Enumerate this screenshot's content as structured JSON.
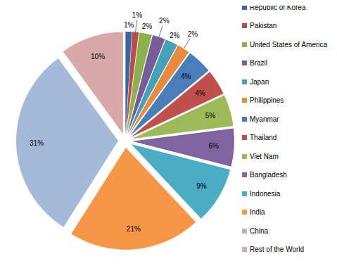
{
  "chart_data": {
    "type": "pie",
    "categories": [
      "Republic of Korea",
      "Pakistan",
      "United States of America",
      "Brazil",
      "Japan",
      "Philippines",
      "Myanmar",
      "Thailand",
      "Viet Nam",
      "Bangladesh",
      "Indonesia",
      "India",
      "China",
      "Rest of the World"
    ],
    "values": [
      1,
      1,
      2,
      2,
      2,
      2,
      4,
      4,
      5,
      6,
      9,
      21,
      31,
      10
    ],
    "value_labels": [
      "1%",
      "1%",
      "2%",
      "2%",
      "2%",
      "2%",
      "4%",
      "4%",
      "5%",
      "6%",
      "9%",
      "21%",
      "31%",
      "10%"
    ],
    "colors": [
      "#3a67a3",
      "#b84c49",
      "#8fb04f",
      "#765d99",
      "#45a0b8",
      "#e88a3e",
      "#4a7ebb",
      "#c0504d",
      "#9bbb59",
      "#8064a2",
      "#4bacc6",
      "#f79646",
      "#a5b9d9",
      "#d9a8a8"
    ],
    "legend": "right",
    "data_labels": true
  }
}
